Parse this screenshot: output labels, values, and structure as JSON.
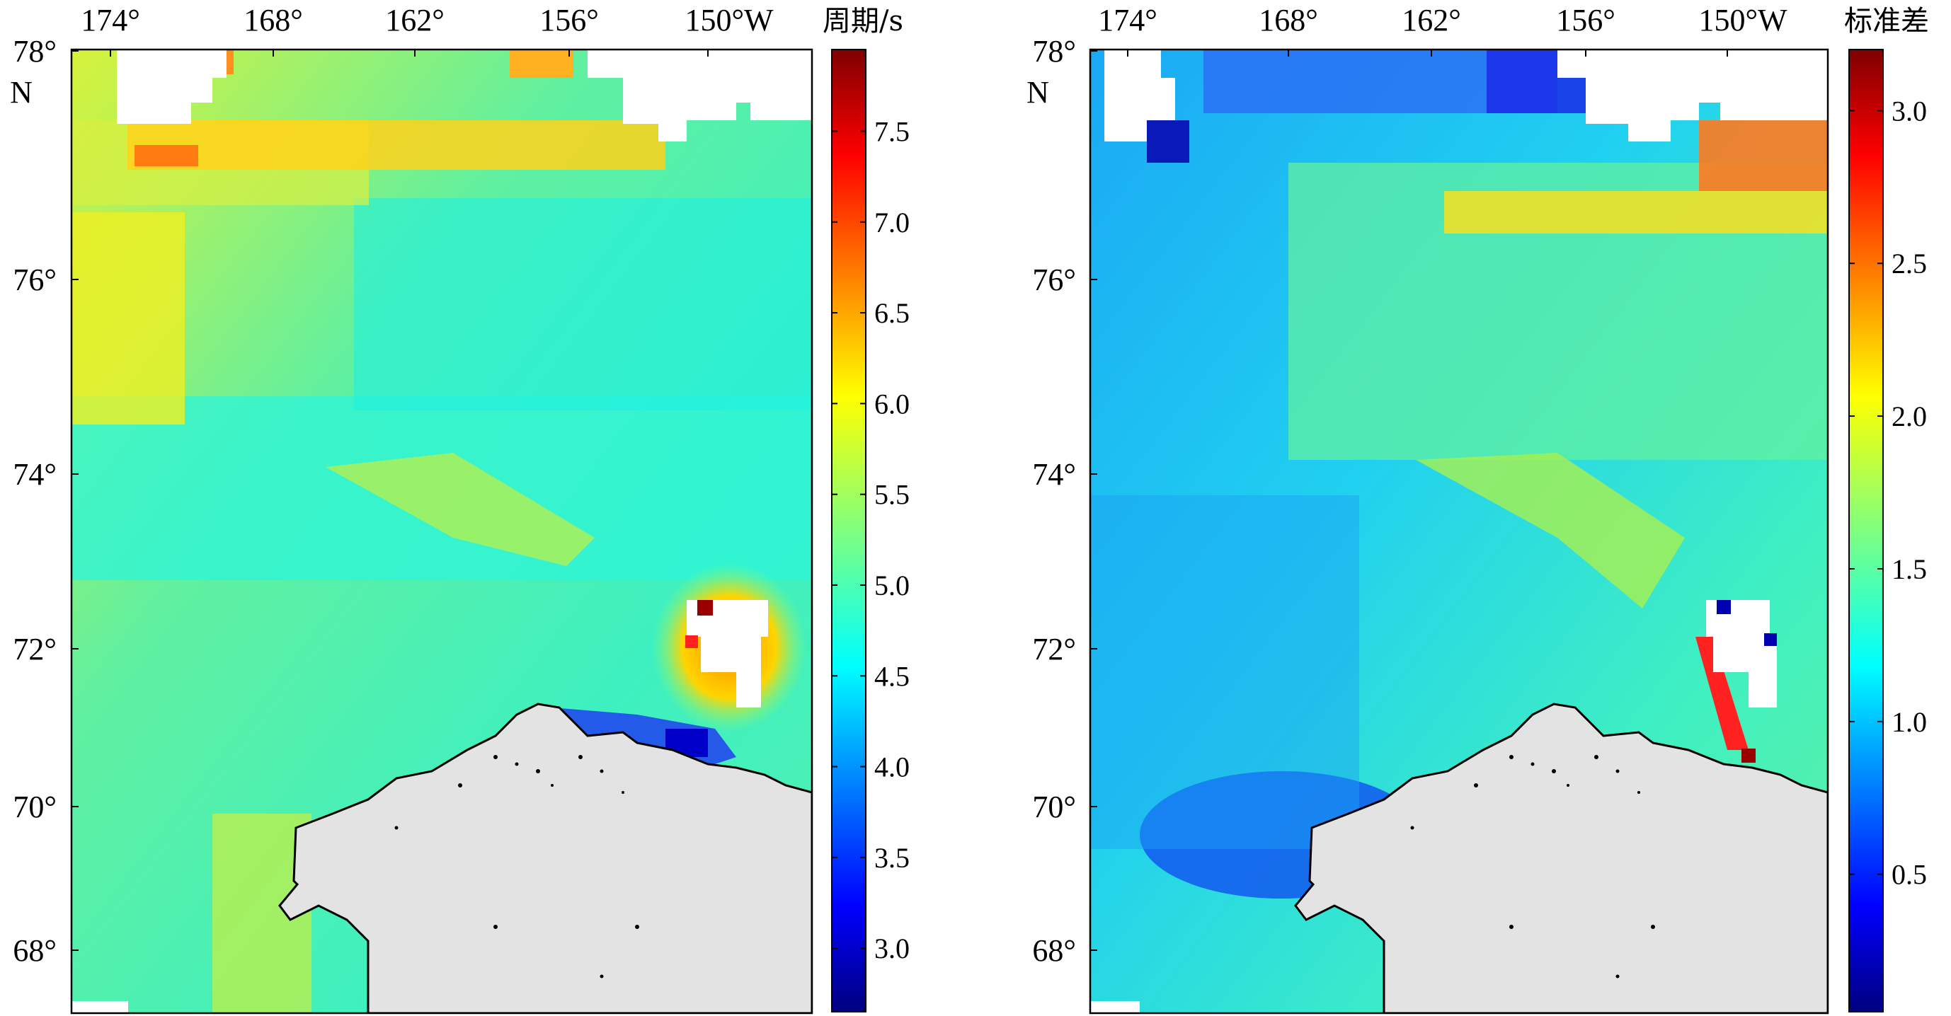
{
  "panels": [
    {
      "id": "left",
      "lon_ticks": [
        "174°",
        "168°",
        "162°",
        "156°",
        "150°W"
      ],
      "lat_ticks": [
        "78°",
        "76°",
        "74°",
        "72°",
        "70°",
        "68°"
      ],
      "lat_unit_label": "N",
      "colorbar": {
        "title": "周期/s",
        "ticks": [
          "7.5",
          "7.0",
          "6.5",
          "6.0",
          "5.5",
          "5.0",
          "4.5",
          "4.0",
          "3.5",
          "3.0"
        ],
        "range": [
          2.65,
          7.95
        ]
      }
    },
    {
      "id": "right",
      "lon_ticks": [
        "174°",
        "168°",
        "162°",
        "156°",
        "150°W"
      ],
      "lat_ticks": [
        "78°",
        "76°",
        "74°",
        "72°",
        "70°",
        "68°"
      ],
      "lat_unit_label": "N",
      "colorbar": {
        "title": "标准差",
        "ticks": [
          "3.0",
          "2.5",
          "2.0",
          "1.5",
          "1.0",
          "0.5"
        ],
        "range": [
          0.05,
          3.2
        ]
      }
    }
  ],
  "colors": {
    "land": "#e3e3e3",
    "coastline": "#000000",
    "colormap": "jet"
  }
}
